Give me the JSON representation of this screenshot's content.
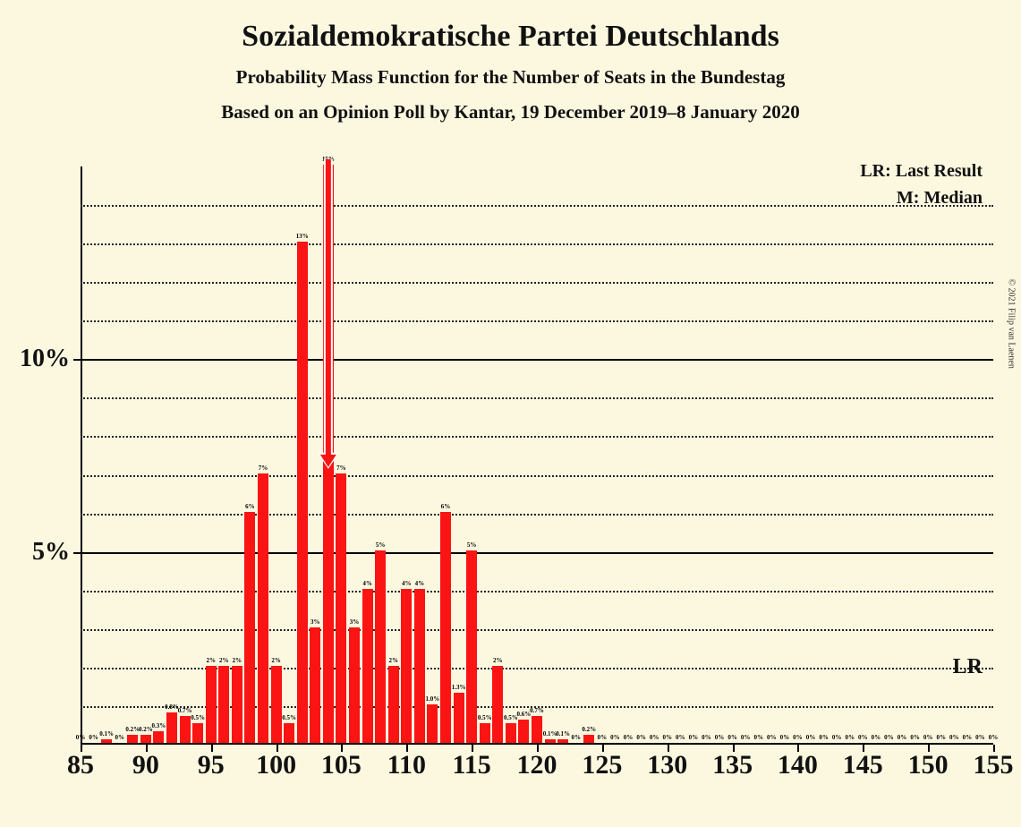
{
  "title": "Sozialdemokratische Partei Deutschlands",
  "subtitle1": "Probability Mass Function for the Number of Seats in the Bundestag",
  "subtitle2": "Based on an Opinion Poll by Kantar, 19 December 2019–8 January 2020",
  "copyright": "© 2021 Filip van Laenen",
  "legend": {
    "lr": "LR: Last Result",
    "m": "M: Median"
  },
  "lr_tag": "LR",
  "chart": {
    "type": "bar",
    "bar_color": "#fa1414",
    "median_color": "#fa1414",
    "background_color": "#fcf8e0",
    "x_min": 85,
    "x_max": 155,
    "y_min": 0,
    "y_max": 15,
    "y_major_step": 5,
    "y_minor_step": 1,
    "x_tick_step": 5,
    "x_label_fontsize": 30,
    "y_label_fontsize": 28,
    "title_fontsize": 34,
    "subtitle_fontsize": 21,
    "bar_label_fontsize": 7,
    "bar_width_ratio": 0.82,
    "median_seat": 104,
    "lr_line_pct": 2,
    "bars": [
      {
        "seat": 85,
        "pct": 0,
        "lbl": "0%"
      },
      {
        "seat": 86,
        "pct": 0,
        "lbl": "0%"
      },
      {
        "seat": 87,
        "pct": 0.1,
        "lbl": "0.1%"
      },
      {
        "seat": 88,
        "pct": 0,
        "lbl": "0%"
      },
      {
        "seat": 89,
        "pct": 0.2,
        "lbl": "0.2%"
      },
      {
        "seat": 90,
        "pct": 0.2,
        "lbl": "0.2%"
      },
      {
        "seat": 91,
        "pct": 0.3,
        "lbl": "0.3%"
      },
      {
        "seat": 92,
        "pct": 0.8,
        "lbl": "0.8%"
      },
      {
        "seat": 93,
        "pct": 0.7,
        "lbl": "0.7%"
      },
      {
        "seat": 94,
        "pct": 0.5,
        "lbl": "0.5%"
      },
      {
        "seat": 95,
        "pct": 2,
        "lbl": "2%"
      },
      {
        "seat": 96,
        "pct": 2,
        "lbl": "2%"
      },
      {
        "seat": 97,
        "pct": 2,
        "lbl": "2%"
      },
      {
        "seat": 98,
        "pct": 6,
        "lbl": "6%"
      },
      {
        "seat": 99,
        "pct": 7,
        "lbl": "7%"
      },
      {
        "seat": 100,
        "pct": 2,
        "lbl": "2%"
      },
      {
        "seat": 101,
        "pct": 0.5,
        "lbl": "0.5%"
      },
      {
        "seat": 102,
        "pct": 13,
        "lbl": "13%"
      },
      {
        "seat": 103,
        "pct": 3,
        "lbl": "3%"
      },
      {
        "seat": 104,
        "pct": 15,
        "lbl": "15%"
      },
      {
        "seat": 105,
        "pct": 7,
        "lbl": "7%"
      },
      {
        "seat": 106,
        "pct": 3,
        "lbl": "3%"
      },
      {
        "seat": 107,
        "pct": 4,
        "lbl": "4%"
      },
      {
        "seat": 108,
        "pct": 5,
        "lbl": "5%"
      },
      {
        "seat": 109,
        "pct": 2,
        "lbl": "2%"
      },
      {
        "seat": 110,
        "pct": 4,
        "lbl": "4%"
      },
      {
        "seat": 111,
        "pct": 4,
        "lbl": "4%"
      },
      {
        "seat": 112,
        "pct": 1.0,
        "lbl": "1.0%"
      },
      {
        "seat": 113,
        "pct": 6,
        "lbl": "6%"
      },
      {
        "seat": 114,
        "pct": 1.3,
        "lbl": "1.3%"
      },
      {
        "seat": 115,
        "pct": 5,
        "lbl": "5%"
      },
      {
        "seat": 116,
        "pct": 0.5,
        "lbl": "0.5%"
      },
      {
        "seat": 117,
        "pct": 2,
        "lbl": "2%"
      },
      {
        "seat": 118,
        "pct": 0.5,
        "lbl": "0.5%"
      },
      {
        "seat": 119,
        "pct": 0.6,
        "lbl": "0.6%"
      },
      {
        "seat": 120,
        "pct": 0.7,
        "lbl": "0.7%"
      },
      {
        "seat": 121,
        "pct": 0.1,
        "lbl": "0.1%"
      },
      {
        "seat": 122,
        "pct": 0.1,
        "lbl": "0.1%"
      },
      {
        "seat": 123,
        "pct": 0,
        "lbl": "0%"
      },
      {
        "seat": 124,
        "pct": 0.2,
        "lbl": "0.2%"
      },
      {
        "seat": 125,
        "pct": 0,
        "lbl": "0%"
      },
      {
        "seat": 126,
        "pct": 0,
        "lbl": "0%"
      },
      {
        "seat": 127,
        "pct": 0,
        "lbl": "0%"
      },
      {
        "seat": 128,
        "pct": 0,
        "lbl": "0%"
      },
      {
        "seat": 129,
        "pct": 0,
        "lbl": "0%"
      },
      {
        "seat": 130,
        "pct": 0,
        "lbl": "0%"
      },
      {
        "seat": 131,
        "pct": 0,
        "lbl": "0%"
      },
      {
        "seat": 132,
        "pct": 0,
        "lbl": "0%"
      },
      {
        "seat": 133,
        "pct": 0,
        "lbl": "0%"
      },
      {
        "seat": 134,
        "pct": 0,
        "lbl": "0%"
      },
      {
        "seat": 135,
        "pct": 0,
        "lbl": "0%"
      },
      {
        "seat": 136,
        "pct": 0,
        "lbl": "0%"
      },
      {
        "seat": 137,
        "pct": 0,
        "lbl": "0%"
      },
      {
        "seat": 138,
        "pct": 0,
        "lbl": "0%"
      },
      {
        "seat": 139,
        "pct": 0,
        "lbl": "0%"
      },
      {
        "seat": 140,
        "pct": 0,
        "lbl": "0%"
      },
      {
        "seat": 141,
        "pct": 0,
        "lbl": "0%"
      },
      {
        "seat": 142,
        "pct": 0,
        "lbl": "0%"
      },
      {
        "seat": 143,
        "pct": 0,
        "lbl": "0%"
      },
      {
        "seat": 144,
        "pct": 0,
        "lbl": "0%"
      },
      {
        "seat": 145,
        "pct": 0,
        "lbl": "0%"
      },
      {
        "seat": 146,
        "pct": 0,
        "lbl": "0%"
      },
      {
        "seat": 147,
        "pct": 0,
        "lbl": "0%"
      },
      {
        "seat": 148,
        "pct": 0,
        "lbl": "0%"
      },
      {
        "seat": 149,
        "pct": 0,
        "lbl": "0%"
      },
      {
        "seat": 150,
        "pct": 0,
        "lbl": "0%"
      },
      {
        "seat": 151,
        "pct": 0,
        "lbl": "0%"
      },
      {
        "seat": 152,
        "pct": 0,
        "lbl": "0%"
      },
      {
        "seat": 153,
        "pct": 0,
        "lbl": "0%"
      },
      {
        "seat": 154,
        "pct": 0,
        "lbl": "0%"
      },
      {
        "seat": 155,
        "pct": 0,
        "lbl": "0%"
      }
    ]
  }
}
